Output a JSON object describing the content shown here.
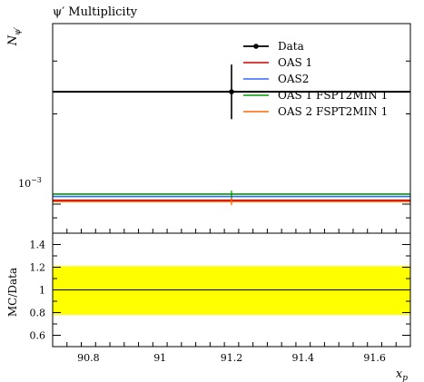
{
  "chart_data": [
    {
      "type": "line",
      "title": "ψ′ Multiplicity",
      "ylabel": "N_ψ′",
      "xlabel": "x_p",
      "yscale": "log",
      "xlim": [
        90.7,
        91.7
      ],
      "ylim": [
        0.0008,
        0.004
      ],
      "ytick_labels": [
        {
          "value": 0.001,
          "label": "10",
          "exp": "−3"
        }
      ],
      "legend_position": "top-right",
      "legend": [
        "Data",
        "OAS 1",
        "OAS2",
        "OAS 1 FSPT2MIN 1",
        "OAS 2 FSPT2MIN 1"
      ],
      "series": [
        {
          "name": "Data",
          "color": "#000000",
          "x": 91.2,
          "xerr": [
            90.7,
            91.7
          ],
          "y": 0.00237,
          "yerr": [
            0.00192,
            0.00292
          ],
          "marker": true
        },
        {
          "name": "OAS 1",
          "color": "#cc0000",
          "x": 91.2,
          "xerr": [
            90.7,
            91.7
          ],
          "y": 0.00103
        },
        {
          "name": "OAS2",
          "color": "#3366ff",
          "x": 91.2,
          "xerr": [
            90.7,
            91.7
          ],
          "y": 0.00106
        },
        {
          "name": "OAS 1 FSPT2MIN 1",
          "color": "#009900",
          "x": 91.2,
          "xerr": [
            90.7,
            91.7
          ],
          "y": 0.00108
        },
        {
          "name": "OAS 2 FSPT2MIN 1",
          "color": "#ff6600",
          "x": 91.2,
          "xerr": [
            90.7,
            91.7
          ],
          "y": 0.00102
        }
      ]
    },
    {
      "type": "line",
      "title": "",
      "ylabel": "MC/Data",
      "xlabel": "x_p",
      "xlim": [
        90.7,
        91.7
      ],
      "ylim": [
        0.5,
        1.5
      ],
      "yticks": [
        0.6,
        0.8,
        1,
        1.2,
        1.4
      ],
      "ytick_labels": [
        "0.6",
        "0.8",
        "1",
        "1.2",
        "1.4"
      ],
      "xticks": [
        90.8,
        91,
        91.2,
        91.4,
        91.6
      ],
      "xtick_labels": [
        "90.8",
        "91",
        "91.2",
        "91.4",
        "91.6"
      ],
      "band": {
        "color": "#ffff00",
        "y_low": 0.78,
        "y_high": 1.21
      },
      "reference_line": 1
    }
  ],
  "colors": {
    "band": "#ffff00",
    "frame": "#000000"
  }
}
